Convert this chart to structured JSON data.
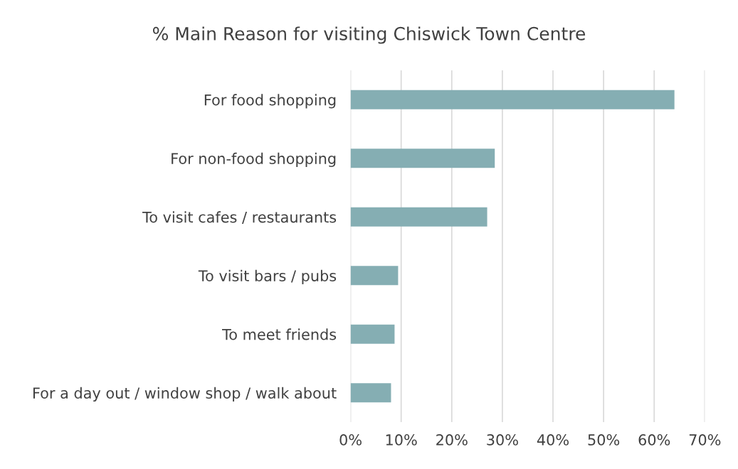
{
  "chart_data": {
    "type": "bar",
    "orientation": "horizontal",
    "title": "% Main Reason for visiting Chiswick Town Centre",
    "categories": [
      "For food shopping",
      "For non-food shopping",
      "To visit cafes / restaurants",
      "To visit bars / pubs",
      "To meet friends",
      "For a day out / window shop / walk about"
    ],
    "values": [
      64,
      28.5,
      27,
      9.4,
      8.7,
      8
    ],
    "color": "#85aeb3",
    "xlim": [
      0,
      70
    ],
    "xticks": [
      {
        "value": 0,
        "label": "0%"
      },
      {
        "value": 10,
        "label": "10%"
      },
      {
        "value": 20,
        "label": "20%"
      },
      {
        "value": 30,
        "label": "30%"
      },
      {
        "value": 40,
        "label": "40%"
      },
      {
        "value": 50,
        "label": "50%"
      },
      {
        "value": 60,
        "label": "60%"
      },
      {
        "value": 70,
        "label": "70%"
      }
    ],
    "grid": "x",
    "legend": false
  }
}
